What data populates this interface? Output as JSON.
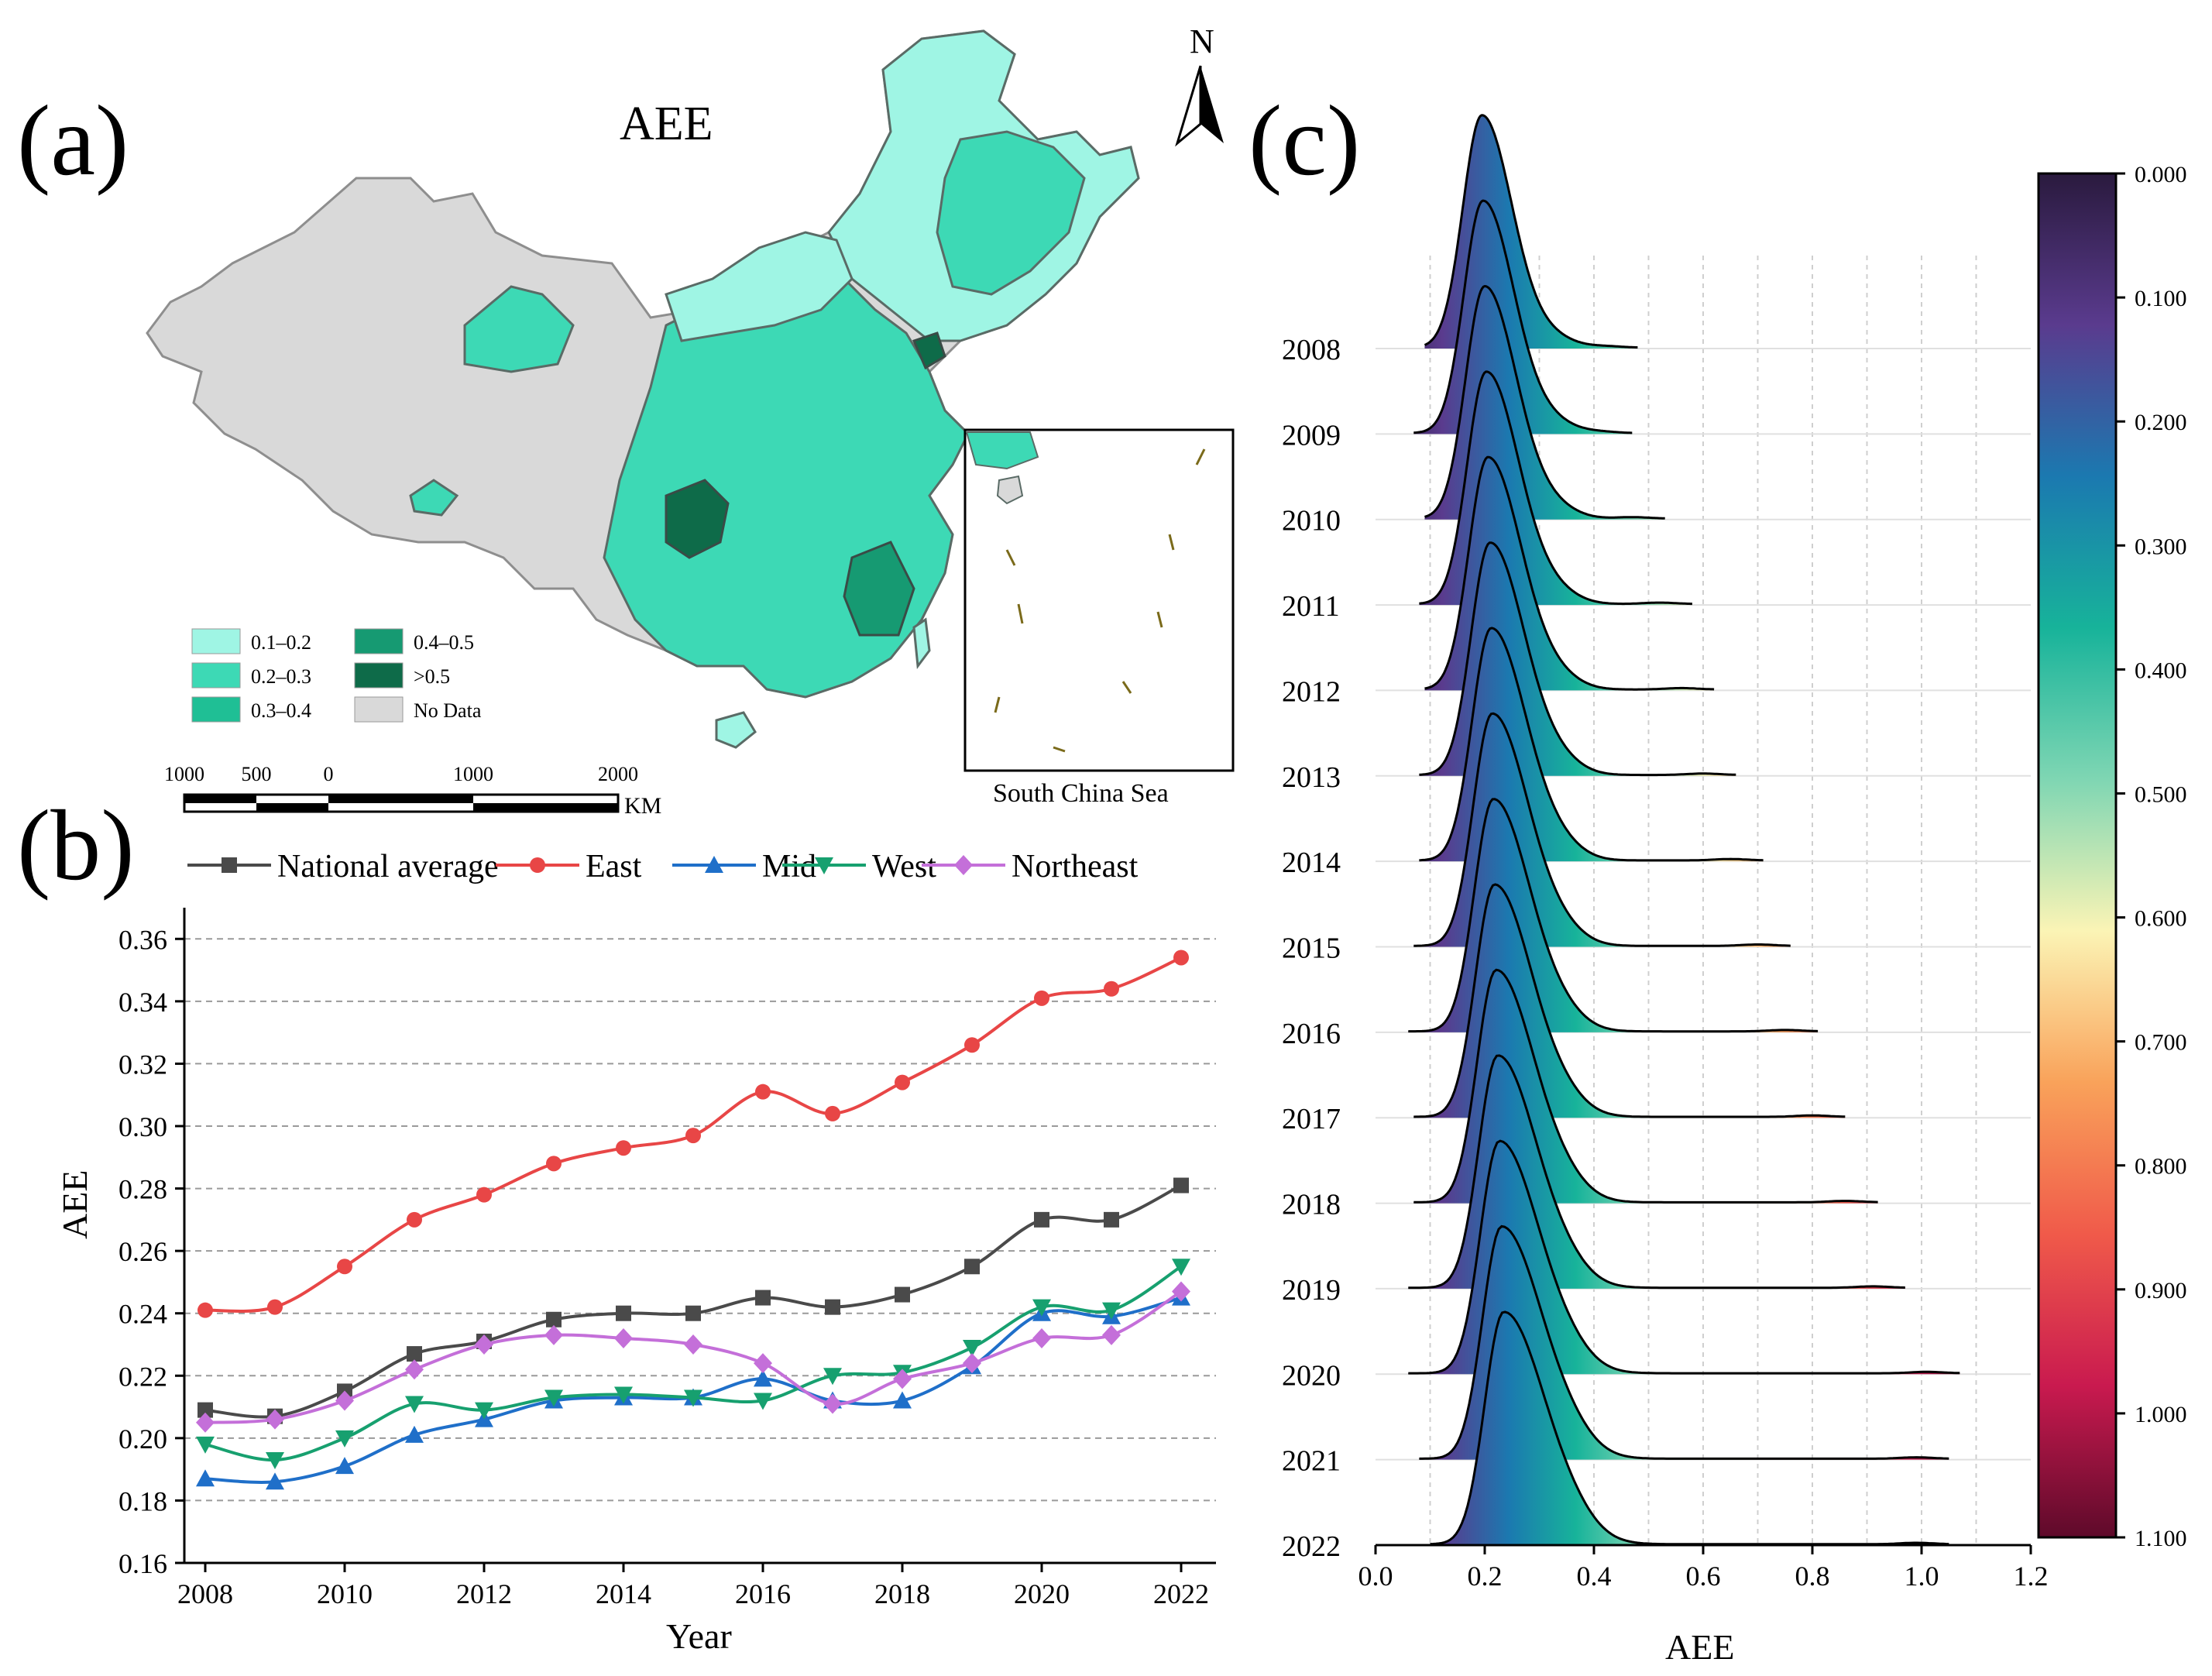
{
  "panels": {
    "a": "(a)",
    "b": "(b)",
    "c": "(c)"
  },
  "map": {
    "title": "AEE",
    "north": "N",
    "inset_label": "South China Sea",
    "legend": [
      {
        "label": "0.1–0.2",
        "color": "#9ff5e4"
      },
      {
        "label": "0.2–0.3",
        "color": "#3dd9b5"
      },
      {
        "label": "0.3–0.4",
        "color": "#1fbf95"
      },
      {
        "label": "0.4–0.5",
        "color": "#169a72"
      },
      {
        "label": ">0.5",
        "color": "#0e6b49"
      },
      {
        "label": "No Data",
        "color": "#d9d9d9"
      }
    ],
    "scale_labels": [
      "1000",
      "500",
      "0",
      "1000",
      "2000"
    ],
    "scale_unit": "KM"
  },
  "chart_data": [
    {
      "type": "line",
      "panel": "b",
      "title": "",
      "xlabel": "Year",
      "ylabel": "AEE",
      "x": [
        2008,
        2009,
        2010,
        2011,
        2012,
        2013,
        2014,
        2015,
        2016,
        2017,
        2018,
        2019,
        2020,
        2021,
        2022
      ],
      "xlim": [
        2007.7,
        2022.5
      ],
      "ylim": [
        0.16,
        0.37
      ],
      "xticks": [
        "2008",
        "2010",
        "2012",
        "2014",
        "2016",
        "2018",
        "2020",
        "2022"
      ],
      "yticks": [
        "0.16",
        "0.18",
        "0.20",
        "0.22",
        "0.24",
        "0.26",
        "0.28",
        "0.30",
        "0.32",
        "0.34",
        "0.36"
      ],
      "grid": "horizontal dashed",
      "legend_position": "top",
      "series": [
        {
          "name": "National average",
          "color": "#4a4a4a",
          "marker": "square",
          "values": [
            0.209,
            0.207,
            0.215,
            0.227,
            0.231,
            0.238,
            0.24,
            0.24,
            0.245,
            0.242,
            0.246,
            0.255,
            0.27,
            0.27,
            0.281
          ]
        },
        {
          "name": "East",
          "color": "#e84646",
          "marker": "circle",
          "values": [
            0.241,
            0.242,
            0.255,
            0.27,
            0.278,
            0.288,
            0.293,
            0.297,
            0.311,
            0.304,
            0.314,
            0.326,
            0.341,
            0.344,
            0.354
          ]
        },
        {
          "name": "Mid",
          "color": "#1f6fc9",
          "marker": "triangle-up",
          "values": [
            0.187,
            0.186,
            0.191,
            0.201,
            0.206,
            0.212,
            0.213,
            0.213,
            0.219,
            0.212,
            0.212,
            0.223,
            0.24,
            0.239,
            0.245
          ]
        },
        {
          "name": "West",
          "color": "#17a06f",
          "marker": "triangle-down",
          "values": [
            0.198,
            0.193,
            0.2,
            0.211,
            0.209,
            0.213,
            0.214,
            0.213,
            0.212,
            0.22,
            0.221,
            0.229,
            0.242,
            0.241,
            0.255
          ]
        },
        {
          "name": "Northeast",
          "color": "#c46fd9",
          "marker": "diamond",
          "values": [
            0.205,
            0.206,
            0.212,
            0.222,
            0.23,
            0.233,
            0.232,
            0.23,
            0.224,
            0.211,
            0.219,
            0.224,
            0.232,
            0.233,
            0.247
          ]
        }
      ]
    },
    {
      "type": "area",
      "subtype": "ridgeline density",
      "panel": "c",
      "title": "",
      "xlabel": "AEE",
      "ylabel": "",
      "xlim": [
        0.0,
        1.2
      ],
      "xticks": [
        "0.0",
        "0.2",
        "0.4",
        "0.6",
        "0.8",
        "1.0",
        "1.2"
      ],
      "years": [
        "2008",
        "2009",
        "2010",
        "2011",
        "2012",
        "2013",
        "2014",
        "2015",
        "2016",
        "2017",
        "2018",
        "2019",
        "2020",
        "2021",
        "2022"
      ],
      "peak": [
        0.195,
        0.197,
        0.2,
        0.203,
        0.206,
        0.21,
        0.212,
        0.214,
        0.216,
        0.218,
        0.221,
        0.224,
        0.227,
        0.231,
        0.235
      ],
      "min": [
        0.09,
        0.07,
        0.09,
        0.08,
        0.09,
        0.08,
        0.08,
        0.07,
        0.06,
        0.07,
        0.07,
        0.06,
        0.06,
        0.08,
        0.1
      ],
      "max": [
        0.48,
        0.47,
        0.53,
        0.58,
        0.62,
        0.66,
        0.71,
        0.76,
        0.81,
        0.86,
        0.92,
        0.97,
        1.07,
        1.05,
        1.05
      ],
      "colorbar": {
        "ticks": [
          "0.000",
          "0.100",
          "0.200",
          "0.300",
          "0.400",
          "0.500",
          "0.600",
          "0.700",
          "0.800",
          "0.900",
          "1.000",
          "1.100"
        ],
        "range": [
          0.0,
          1.1
        ],
        "stops": [
          "#2a1a3e",
          "#5a3b8e",
          "#1b79b0",
          "#17b39a",
          "#7fd6b3",
          "#fbf4b5",
          "#f9a25a",
          "#f05a4a",
          "#c91a4f",
          "#5e0a2a"
        ]
      }
    }
  ]
}
